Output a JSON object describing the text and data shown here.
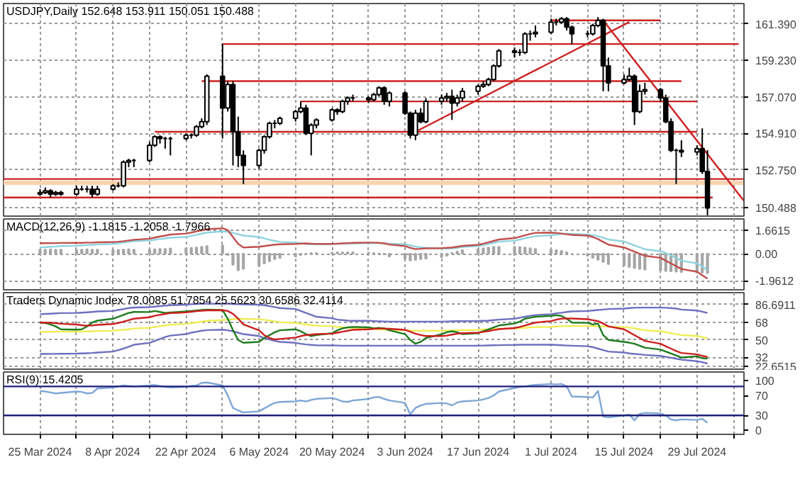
{
  "chart_data": [
    {
      "type": "candlestick",
      "title": "USDJPY,Daily 152.648 153.911 150.051 150.488",
      "x": [
        "2024-03-25",
        "2024-03-26",
        "2024-03-27",
        "2024-03-28",
        "2024-03-29",
        "2024-04-01",
        "2024-04-02",
        "2024-04-03",
        "2024-04-04",
        "2024-04-05",
        "2024-04-08",
        "2024-04-09",
        "2024-04-10",
        "2024-04-11",
        "2024-04-12",
        "2024-04-15",
        "2024-04-16",
        "2024-04-17",
        "2024-04-18",
        "2024-04-19",
        "2024-04-22",
        "2024-04-23",
        "2024-04-24",
        "2024-04-25",
        "2024-04-26",
        "2024-04-29",
        "2024-04-30",
        "2024-05-01",
        "2024-05-02",
        "2024-05-03",
        "2024-05-06",
        "2024-05-07",
        "2024-05-08",
        "2024-05-09",
        "2024-05-10",
        "2024-05-13",
        "2024-05-14",
        "2024-05-15",
        "2024-05-16",
        "2024-05-17",
        "2024-05-20",
        "2024-05-21",
        "2024-05-22",
        "2024-05-23",
        "2024-05-24",
        "2024-05-27",
        "2024-05-28",
        "2024-05-29",
        "2024-05-30",
        "2024-05-31",
        "2024-06-03",
        "2024-06-04",
        "2024-06-05",
        "2024-06-06",
        "2024-06-07",
        "2024-06-10",
        "2024-06-11",
        "2024-06-12",
        "2024-06-13",
        "2024-06-14",
        "2024-06-17",
        "2024-06-18",
        "2024-06-19",
        "2024-06-20",
        "2024-06-21",
        "2024-06-24",
        "2024-06-25",
        "2024-06-26",
        "2024-06-27",
        "2024-06-28",
        "2024-07-01",
        "2024-07-02",
        "2024-07-03",
        "2024-07-04",
        "2024-07-05",
        "2024-07-08",
        "2024-07-09",
        "2024-07-10",
        "2024-07-11",
        "2024-07-12",
        "2024-07-15",
        "2024-07-16",
        "2024-07-17",
        "2024-07-18",
        "2024-07-19",
        "2024-07-22",
        "2024-07-23",
        "2024-07-24",
        "2024-07-25",
        "2024-07-26",
        "2024-07-29",
        "2024-07-30",
        "2024-07-31"
      ],
      "ohlc": [
        [
          151.3,
          151.6,
          151.2,
          151.4
        ],
        [
          151.4,
          151.7,
          151.3,
          151.5
        ],
        [
          151.5,
          151.6,
          151.1,
          151.3
        ],
        [
          151.3,
          151.5,
          151.2,
          151.4
        ],
        [
          151.4,
          151.5,
          151.2,
          151.3
        ],
        [
          151.3,
          151.8,
          151.2,
          151.6
        ],
        [
          151.6,
          151.8,
          151.5,
          151.6
        ],
        [
          151.6,
          151.8,
          151.4,
          151.6
        ],
        [
          151.6,
          151.8,
          151.1,
          151.3
        ],
        [
          151.3,
          151.8,
          151.2,
          151.6
        ],
        [
          151.6,
          151.9,
          151.5,
          151.8
        ],
        [
          151.8,
          152.0,
          151.7,
          151.8
        ],
        [
          151.8,
          153.3,
          151.7,
          153.2
        ],
        [
          153.2,
          153.4,
          152.9,
          153.3
        ],
        [
          153.3,
          153.4,
          152.9,
          153.3
        ],
        [
          153.3,
          154.4,
          153.2,
          154.2
        ],
        [
          154.2,
          154.8,
          154.1,
          154.7
        ],
        [
          154.7,
          154.8,
          154.3,
          154.6
        ],
        [
          154.6,
          154.7,
          154.0,
          154.6
        ],
        [
          154.6,
          154.7,
          153.6,
          154.6
        ],
        [
          154.6,
          154.9,
          154.5,
          154.8
        ],
        [
          154.8,
          154.9,
          154.6,
          154.8
        ],
        [
          154.8,
          155.4,
          154.7,
          155.3
        ],
        [
          155.3,
          155.8,
          155.2,
          155.6
        ],
        [
          155.6,
          158.4,
          155.4,
          158.3
        ],
        [
          158.3,
          160.2,
          154.6,
          156.4
        ],
        [
          156.4,
          158.0,
          156.2,
          157.8
        ],
        [
          157.8,
          158.0,
          153.0,
          155.0
        ],
        [
          155.0,
          155.9,
          152.9,
          153.6
        ],
        [
          153.6,
          153.9,
          151.9,
          153.0
        ],
        [
          153.0,
          154.0,
          152.8,
          153.9
        ],
        [
          153.9,
          154.8,
          153.7,
          154.7
        ],
        [
          154.7,
          155.6,
          154.6,
          155.5
        ],
        [
          155.5,
          155.7,
          155.2,
          155.5
        ],
        [
          155.5,
          155.9,
          155.4,
          155.8
        ],
        [
          155.8,
          156.3,
          155.6,
          156.2
        ],
        [
          156.2,
          156.8,
          156.1,
          156.4
        ],
        [
          156.4,
          156.6,
          154.8,
          154.9
        ],
        [
          154.9,
          155.5,
          153.6,
          155.4
        ],
        [
          155.4,
          155.8,
          155.2,
          155.7
        ],
        [
          155.7,
          156.4,
          155.6,
          156.3
        ],
        [
          156.3,
          156.4,
          156.0,
          156.2
        ],
        [
          156.2,
          156.9,
          156.1,
          156.8
        ],
        [
          156.8,
          157.1,
          156.6,
          157.0
        ],
        [
          157.0,
          157.2,
          156.8,
          157.0
        ],
        [
          157.0,
          157.1,
          156.7,
          156.9
        ],
        [
          156.9,
          157.3,
          156.8,
          157.2
        ],
        [
          157.2,
          157.7,
          157.1,
          157.6
        ],
        [
          157.6,
          157.7,
          156.6,
          156.8
        ],
        [
          156.8,
          157.4,
          156.5,
          157.3
        ],
        [
          157.3,
          157.4,
          156.0,
          156.1
        ],
        [
          156.1,
          156.2,
          154.6,
          154.8
        ],
        [
          154.8,
          156.3,
          154.5,
          156.1
        ],
        [
          156.1,
          156.4,
          155.5,
          155.6
        ],
        [
          155.6,
          157.0,
          155.5,
          156.8
        ],
        [
          156.8,
          157.2,
          156.6,
          157.0
        ],
        [
          157.0,
          157.3,
          156.8,
          157.1
        ],
        [
          157.1,
          157.5,
          155.7,
          156.7
        ],
        [
          156.7,
          157.2,
          156.5,
          157.0
        ],
        [
          157.0,
          157.6,
          156.8,
          157.4
        ],
        [
          157.4,
          157.8,
          157.2,
          157.7
        ],
        [
          157.7,
          158.0,
          157.6,
          157.8
        ],
        [
          157.8,
          158.2,
          157.7,
          158.1
        ],
        [
          158.1,
          159.0,
          158.0,
          158.9
        ],
        [
          158.9,
          159.9,
          158.8,
          159.8
        ],
        [
          159.8,
          160.0,
          159.4,
          159.7
        ],
        [
          159.7,
          159.9,
          159.5,
          159.7
        ],
        [
          159.7,
          160.9,
          159.6,
          160.8
        ],
        [
          160.8,
          161.0,
          160.4,
          160.8
        ],
        [
          160.8,
          161.3,
          160.6,
          160.9
        ],
        [
          160.9,
          161.7,
          160.8,
          161.5
        ],
        [
          161.5,
          161.7,
          161.3,
          161.5
        ],
        [
          161.5,
          161.8,
          161.4,
          161.7
        ],
        [
          161.7,
          161.8,
          161.0,
          161.2
        ],
        [
          161.2,
          161.3,
          160.2,
          160.8
        ],
        [
          160.8,
          161.0,
          160.6,
          160.8
        ],
        [
          160.8,
          161.4,
          160.7,
          161.3
        ],
        [
          161.3,
          161.8,
          161.2,
          161.6
        ],
        [
          161.6,
          161.7,
          157.4,
          158.9
        ],
        [
          158.9,
          159.4,
          157.4,
          157.9
        ],
        [
          157.9,
          158.4,
          157.8,
          158.1
        ],
        [
          158.1,
          158.8,
          158.0,
          158.3
        ],
        [
          158.3,
          158.4,
          155.4,
          156.2
        ],
        [
          156.2,
          157.8,
          156.1,
          157.4
        ],
        [
          157.4,
          157.9,
          157.2,
          157.5
        ],
        [
          157.5,
          157.6,
          156.8,
          157.0
        ],
        [
          157.0,
          157.2,
          155.5,
          155.6
        ],
        [
          155.6,
          155.8,
          153.8,
          153.9
        ],
        [
          153.9,
          154.0,
          151.9,
          153.9
        ],
        [
          153.9,
          154.5,
          153.5,
          153.8
        ],
        [
          153.8,
          154.2,
          153.6,
          154.0
        ],
        [
          154.0,
          155.2,
          152.5,
          152.648
        ],
        [
          152.648,
          153.911,
          150.051,
          150.488
        ]
      ],
      "series": [
        {
          "type": "line",
          "color": "#cc2222",
          "x": [
            "2024-04-29",
            "2024-08-06"
          ],
          "values": [
            160.2,
            160.2
          ]
        },
        {
          "type": "line",
          "color": "#cc2222",
          "x": [
            "2024-04-25",
            "2024-07-26"
          ],
          "values": [
            158.0,
            158.0
          ]
        },
        {
          "type": "line",
          "color": "#cc2222",
          "x": [
            "2024-05-14",
            "2024-07-29"
          ],
          "values": [
            156.8,
            156.8
          ]
        },
        {
          "type": "line",
          "color": "#cc2222",
          "x": [
            "2024-04-16",
            "2024-07-29"
          ],
          "values": [
            155.0,
            155.0
          ]
        },
        {
          "type": "line",
          "color": "#cc2222",
          "x": [
            "2024-03-18",
            "2024-08-07"
          ],
          "values": [
            152.2,
            152.2
          ]
        },
        {
          "type": "line",
          "color": "#cc2222",
          "x": [
            "2024-03-18",
            "2024-08-01"
          ],
          "values": [
            151.1,
            151.1
          ]
        },
        {
          "type": "line",
          "color": "#cc2222",
          "x": [
            "2024-07-01",
            "2024-07-22"
          ],
          "values": [
            161.6,
            161.6
          ]
        },
        {
          "type": "line",
          "color": "#cc2222",
          "x": [
            "2024-06-05",
            "2024-07-16"
          ],
          "values": [
            155.0,
            161.5
          ]
        },
        {
          "type": "line",
          "color": "#cc2222",
          "x": [
            "2024-07-11",
            "2024-08-07"
          ],
          "values": [
            161.6,
            150.9
          ]
        }
      ],
      "bands": [
        {
          "axis": "y",
          "from": 151.85,
          "to": 152.1,
          "color": "#fad3b0"
        }
      ],
      "xlim": [
        "2024-03-18",
        "2024-08-07"
      ],
      "xticks": [
        "2024-03-25",
        "2024-04-01",
        "2024-04-08",
        "2024-04-15",
        "2024-04-22",
        "2024-04-29",
        "2024-05-06",
        "2024-05-13",
        "2024-05-20",
        "2024-05-27",
        "2024-06-03",
        "2024-06-10",
        "2024-06-17",
        "2024-06-24",
        "2024-07-01",
        "2024-07-08",
        "2024-07-15",
        "2024-07-22",
        "2024-07-29",
        "2024-08-05"
      ],
      "ylim": [
        150.0,
        162.6
      ],
      "yticks": [
        {
          "value": 150.488,
          "label": "150.488"
        },
        {
          "value": 152.75,
          "label": "152.750"
        },
        {
          "value": 154.91,
          "label": "154.910"
        },
        {
          "value": 157.07,
          "label": "157.070"
        },
        {
          "value": 159.23,
          "label": "159.230"
        },
        {
          "value": 161.39,
          "label": "161.390"
        }
      ],
      "grid": true,
      "tick_labels": "y"
    },
    {
      "type": "bar",
      "title": "MACD(12,26,9) -1.1815 -1.2058 -1.7966",
      "x": [
        "2024-03-25",
        "2024-03-26",
        "2024-03-27",
        "2024-03-28",
        "2024-03-29",
        "2024-04-01",
        "2024-04-02",
        "2024-04-03",
        "2024-04-04",
        "2024-04-05",
        "2024-04-08",
        "2024-04-09",
        "2024-04-10",
        "2024-04-11",
        "2024-04-12",
        "2024-04-15",
        "2024-04-16",
        "2024-04-17",
        "2024-04-18",
        "2024-04-19",
        "2024-04-22",
        "2024-04-23",
        "2024-04-24",
        "2024-04-25",
        "2024-04-26",
        "2024-04-29",
        "2024-04-30",
        "2024-05-01",
        "2024-05-02",
        "2024-05-03",
        "2024-05-06",
        "2024-05-07",
        "2024-05-08",
        "2024-05-09",
        "2024-05-10",
        "2024-05-13",
        "2024-05-14",
        "2024-05-15",
        "2024-05-16",
        "2024-05-17",
        "2024-05-20",
        "2024-05-21",
        "2024-05-22",
        "2024-05-23",
        "2024-05-24",
        "2024-05-27",
        "2024-05-28",
        "2024-05-29",
        "2024-05-30",
        "2024-05-31",
        "2024-06-03",
        "2024-06-04",
        "2024-06-05",
        "2024-06-06",
        "2024-06-07",
        "2024-06-10",
        "2024-06-11",
        "2024-06-12",
        "2024-06-13",
        "2024-06-14",
        "2024-06-17",
        "2024-06-18",
        "2024-06-19",
        "2024-06-20",
        "2024-06-21",
        "2024-06-24",
        "2024-06-25",
        "2024-06-26",
        "2024-06-27",
        "2024-06-28",
        "2024-07-01",
        "2024-07-02",
        "2024-07-03",
        "2024-07-04",
        "2024-07-05",
        "2024-07-08",
        "2024-07-09",
        "2024-07-10",
        "2024-07-11",
        "2024-07-12",
        "2024-07-15",
        "2024-07-16",
        "2024-07-17",
        "2024-07-18",
        "2024-07-19",
        "2024-07-22",
        "2024-07-23",
        "2024-07-24",
        "2024-07-25",
        "2024-07-26",
        "2024-07-29",
        "2024-07-30",
        "2024-07-31"
      ],
      "series": [
        {
          "type": "bar",
          "color": "#a6a6a6",
          "values": [
            0.3,
            0.3,
            0.32,
            0.3,
            0.3,
            0.28,
            0.3,
            0.32,
            0.3,
            0.3,
            0.28,
            0.28,
            0.3,
            0.32,
            0.3,
            0.3,
            0.32,
            0.35,
            0.35,
            0.38,
            0.4,
            0.42,
            0.45,
            0.5,
            0.55,
            0.6,
            -0.1,
            -0.8,
            -1.2,
            -1.1,
            -0.9,
            -0.7,
            -0.55,
            -0.4,
            -0.3,
            -0.2,
            -0.1,
            -0.05,
            0.05,
            0.05,
            0.08,
            0.1,
            0.1,
            0.1,
            0.1,
            0.08,
            0.05,
            0.02,
            -0.05,
            -0.2,
            -0.35,
            -0.5,
            -0.45,
            -0.4,
            -0.35,
            -0.25,
            -0.15,
            0.05,
            0.15,
            0.25,
            0.35,
            0.4,
            0.45,
            0.5,
            0.5,
            0.5,
            0.48,
            0.45,
            0.4,
            0.35,
            0.3,
            0.25,
            0.2,
            0.1,
            0,
            -0.15,
            -0.3,
            -0.45,
            -0.6,
            -0.75,
            -0.85,
            -0.95,
            -1.05,
            -1.1,
            -1.15,
            -1.2,
            -1.25,
            -1.28,
            -1.3,
            -1.33,
            -1.36,
            -1.38,
            -1.4
          ]
        },
        {
          "type": "line",
          "color": "#8fd3e0",
          "values": [
            0.45,
            0.47,
            0.5,
            0.52,
            0.55,
            0.57,
            0.6,
            0.62,
            0.64,
            0.66,
            0.7,
            0.75,
            0.8,
            0.85,
            0.9,
            0.95,
            1.0,
            1.05,
            1.1,
            1.15,
            1.2,
            1.28,
            1.36,
            1.44,
            1.52,
            1.6,
            1.58,
            1.5,
            1.4,
            1.3,
            1.2,
            1.1,
            1.0,
            0.92,
            0.85,
            0.8,
            0.75,
            0.7,
            0.68,
            0.68,
            0.7,
            0.7,
            0.72,
            0.73,
            0.74,
            0.75,
            0.76,
            0.76,
            0.75,
            0.72,
            0.68,
            0.6,
            0.52,
            0.46,
            0.42,
            0.39,
            0.37,
            0.38,
            0.42,
            0.48,
            0.55,
            0.62,
            0.7,
            0.78,
            0.86,
            0.94,
            1.02,
            1.1,
            1.18,
            1.26,
            1.33,
            1.38,
            1.43,
            1.44,
            1.42,
            1.38,
            1.33,
            1.26,
            1.15,
            1.02,
            0.88,
            0.74,
            0.6,
            0.46,
            0.32,
            0.18,
            0.04,
            -0.12,
            -0.3,
            -0.5,
            -0.7,
            -0.92,
            -1.2
          ]
        },
        {
          "type": "line",
          "color": "#c0504d",
          "values": [
            0.75,
            0.75,
            0.76,
            0.76,
            0.77,
            0.78,
            0.78,
            0.8,
            0.8,
            0.82,
            0.84,
            0.86,
            0.9,
            0.95,
            1.0,
            1.08,
            1.16,
            1.24,
            1.3,
            1.38,
            1.45,
            1.52,
            1.6,
            1.68,
            1.76,
            1.83,
            1.7,
            1.2,
            0.7,
            0.45,
            0.5,
            0.55,
            0.6,
            0.65,
            0.68,
            0.7,
            0.72,
            0.74,
            0.72,
            0.7,
            0.7,
            0.72,
            0.74,
            0.76,
            0.78,
            0.8,
            0.8,
            0.78,
            0.74,
            0.66,
            0.55,
            0.42,
            0.33,
            0.35,
            0.38,
            0.4,
            0.42,
            0.45,
            0.5,
            0.56,
            0.64,
            0.72,
            0.82,
            0.92,
            1.02,
            1.12,
            1.22,
            1.32,
            1.42,
            1.5,
            1.52,
            1.5,
            1.45,
            1.4,
            1.35,
            1.3,
            1.2,
            1.05,
            0.85,
            0.65,
            0.45,
            0.3,
            0.15,
            0,
            -0.15,
            -0.3,
            -0.5,
            -0.7,
            -0.9,
            -1.1,
            -1.3,
            -1.55,
            -1.8
          ]
        }
      ],
      "xlim": [
        "2024-03-18",
        "2024-08-07"
      ],
      "xticks": [
        "2024-03-25",
        "2024-04-01",
        "2024-04-08",
        "2024-04-15",
        "2024-04-22",
        "2024-04-29",
        "2024-05-06",
        "2024-05-13",
        "2024-05-20",
        "2024-05-27",
        "2024-06-03",
        "2024-06-10",
        "2024-06-17",
        "2024-06-24",
        "2024-07-01",
        "2024-07-08",
        "2024-07-15",
        "2024-07-22",
        "2024-07-29",
        "2024-08-05"
      ],
      "ylim": [
        -2.6,
        2.5
      ],
      "yticks": [
        1.6615,
        {
          "value": 0,
          "label": "0.00"
        },
        -1.9612
      ],
      "grid": true,
      "tick_labels": "y"
    },
    {
      "type": "line",
      "title": "Traders Dynamic Index 78.0085 51.7854 25.5623 30.6586 32.4114",
      "x": [
        "2024-03-25",
        "2024-03-26",
        "2024-03-27",
        "2024-03-28",
        "2024-03-29",
        "2024-04-01",
        "2024-04-02",
        "2024-04-03",
        "2024-04-04",
        "2024-04-05",
        "2024-04-08",
        "2024-04-09",
        "2024-04-10",
        "2024-04-11",
        "2024-04-12",
        "2024-04-15",
        "2024-04-16",
        "2024-04-17",
        "2024-04-18",
        "2024-04-19",
        "2024-04-22",
        "2024-04-23",
        "2024-04-24",
        "2024-04-25",
        "2024-04-26",
        "2024-04-29",
        "2024-04-30",
        "2024-05-01",
        "2024-05-02",
        "2024-05-03",
        "2024-05-06",
        "2024-05-07",
        "2024-05-08",
        "2024-05-09",
        "2024-05-10",
        "2024-05-13",
        "2024-05-14",
        "2024-05-15",
        "2024-05-16",
        "2024-05-17",
        "2024-05-20",
        "2024-05-21",
        "2024-05-22",
        "2024-05-23",
        "2024-05-24",
        "2024-05-27",
        "2024-05-28",
        "2024-05-29",
        "2024-05-30",
        "2024-05-31",
        "2024-06-03",
        "2024-06-04",
        "2024-06-05",
        "2024-06-06",
        "2024-06-07",
        "2024-06-10",
        "2024-06-11",
        "2024-06-12",
        "2024-06-13",
        "2024-06-14",
        "2024-06-17",
        "2024-06-18",
        "2024-06-19",
        "2024-06-20",
        "2024-06-21",
        "2024-06-24",
        "2024-06-25",
        "2024-06-26",
        "2024-06-27",
        "2024-06-28",
        "2024-07-01",
        "2024-07-02",
        "2024-07-03",
        "2024-07-04",
        "2024-07-05",
        "2024-07-08",
        "2024-07-09",
        "2024-07-10",
        "2024-07-11",
        "2024-07-12",
        "2024-07-15",
        "2024-07-16",
        "2024-07-17",
        "2024-07-18",
        "2024-07-19",
        "2024-07-22",
        "2024-07-23",
        "2024-07-24",
        "2024-07-25",
        "2024-07-26",
        "2024-07-29",
        "2024-07-30",
        "2024-07-31"
      ],
      "series": [
        {
          "color": "#6f6fc0",
          "values": [
            76.7,
            77,
            77.2,
            77.5,
            77.8,
            78,
            78.3,
            78.6,
            79,
            79.5,
            80,
            81,
            82,
            83,
            83.6,
            84,
            84.5,
            85,
            85.5,
            86,
            86.5,
            87,
            87.3,
            87.5,
            87.5,
            87.5,
            87.5,
            87.3,
            87,
            86.8,
            86.5,
            86,
            85,
            84,
            83,
            82,
            80,
            78,
            76,
            74,
            72.5,
            71,
            70.5,
            70,
            69.8,
            69.8,
            69.5,
            69.3,
            69.2,
            69,
            69,
            69,
            69,
            69,
            69,
            69,
            69.2,
            69.3,
            69.5,
            69.5,
            69.6,
            69.8,
            70,
            70.5,
            71,
            72,
            73,
            74,
            75,
            75.8,
            76.7,
            77.5,
            78.2,
            79,
            79.5,
            80,
            80.5,
            81,
            81.5,
            82,
            82.5,
            83,
            83.3,
            83.5,
            83.5,
            83.5,
            83.3,
            83,
            82.5,
            81.5,
            80.5,
            79.3,
            78.0
          ]
        },
        {
          "color": "#eeee55",
          "values": [
            58.4,
            58.4,
            58.4,
            58.5,
            58.5,
            58.6,
            58.7,
            58.8,
            59,
            59.3,
            59.6,
            60,
            60.5,
            61,
            61.8,
            62.6,
            63.4,
            64.2,
            65,
            65.8,
            66.6,
            67.4,
            68.2,
            69,
            69.8,
            70.5,
            71,
            71.5,
            72,
            71.8,
            71.4,
            70.8,
            70,
            69.2,
            68.4,
            67.6,
            66.8,
            66,
            65.4,
            64.8,
            64.2,
            63.6,
            63,
            62.6,
            62.2,
            61.8,
            61.4,
            61,
            60.6,
            60.2,
            60,
            59.8,
            59.6,
            59.5,
            59.5,
            59.5,
            59.6,
            59.8,
            60,
            60.2,
            60.5,
            60.8,
            61,
            61.3,
            61.6,
            62,
            62.3,
            62.6,
            63,
            63.3,
            63.6,
            63.9,
            64.2,
            64.3,
            64.4,
            64.4,
            64.3,
            64.2,
            64,
            63.7,
            63.3,
            62.8,
            62,
            61,
            60,
            59,
            58,
            57,
            56,
            55,
            54,
            53,
            51.8
          ]
        },
        {
          "color": "#6f6fc0",
          "values": [
            35.5,
            35.5,
            35.6,
            35.6,
            35.7,
            35.8,
            36,
            36.2,
            36.5,
            37,
            38,
            39.5,
            41,
            43,
            45,
            47,
            49,
            51,
            53,
            54.5,
            56,
            57.5,
            58.5,
            59.5,
            60.2,
            60.6,
            60,
            59,
            57.5,
            56,
            54,
            52,
            50.5,
            49,
            48,
            47,
            46,
            45.3,
            44.8,
            44.5,
            44.3,
            44.2,
            44,
            44,
            44,
            44,
            44,
            44,
            44,
            44,
            44,
            44,
            44,
            44,
            44,
            44,
            44,
            44,
            44,
            44,
            44,
            44.2,
            44.3,
            44.5,
            44.6,
            44.8,
            45,
            45,
            45,
            45,
            45,
            44.8,
            44.5,
            44.2,
            44,
            43.5,
            42.5,
            41,
            39.5,
            38,
            37,
            36,
            35.5,
            35,
            34.5,
            33.5,
            32.5,
            31.5,
            30.5,
            29.5,
            28,
            27,
            25.6
          ]
        },
        {
          "color": "#1e7b1e",
          "values": [
            68,
            67.5,
            66,
            64,
            61,
            60.6,
            61,
            64,
            68,
            70,
            72,
            74,
            76,
            78,
            79,
            78.9,
            80,
            79,
            78,
            78.5,
            79.5,
            80,
            80.5,
            81,
            81.5,
            81,
            72,
            60,
            50,
            47,
            48,
            52,
            55,
            58,
            60,
            61,
            59,
            56,
            54,
            55,
            57,
            60,
            62,
            63,
            63.5,
            63,
            62,
            62.5,
            62,
            60,
            56,
            50,
            46,
            48,
            52,
            56,
            58,
            59,
            58,
            56,
            57,
            59,
            61,
            63,
            65,
            67,
            69,
            72,
            73,
            74,
            75,
            75.6,
            75,
            72,
            68,
            67.7,
            66,
            67,
            55,
            50,
            48,
            47.2,
            46,
            44,
            42,
            40,
            38,
            36,
            34,
            31.8,
            33,
            31,
            30.7
          ]
        },
        {
          "color": "#cc1f1f",
          "values": [
            68,
            68,
            67.8,
            67.4,
            66.8,
            66,
            65.2,
            64.8,
            65,
            65.6,
            66.5,
            67.5,
            69,
            70.5,
            72,
            73.5,
            75,
            76,
            77,
            77.8,
            78.5,
            79.2,
            79.8,
            80.3,
            80.6,
            80.8,
            80,
            77,
            72,
            66,
            60,
            55,
            52,
            50.5,
            51,
            52.5,
            54,
            55,
            55.5,
            56,
            56.5,
            57.5,
            58.5,
            59.5,
            60.5,
            61,
            61.5,
            61.8,
            61.8,
            61.5,
            60.5,
            58.5,
            56.5,
            55,
            54,
            54,
            54.5,
            55.5,
            56.5,
            57,
            57.5,
            58.3,
            59.2,
            60.2,
            61.2,
            62.3,
            63.5,
            65,
            66.5,
            68,
            69.5,
            71,
            72,
            72.3,
            72.2,
            71.5,
            70.5,
            69.5,
            67,
            64,
            61,
            58,
            55,
            52,
            49,
            46,
            43.5,
            41,
            38.5,
            36.5,
            35,
            33.5,
            32.4
          ]
        }
      ],
      "xlim": [
        "2024-03-18",
        "2024-08-07"
      ],
      "xticks": [
        "2024-03-25",
        "2024-04-01",
        "2024-04-08",
        "2024-04-15",
        "2024-04-22",
        "2024-04-29",
        "2024-05-06",
        "2024-05-13",
        "2024-05-20",
        "2024-05-27",
        "2024-06-03",
        "2024-06-10",
        "2024-06-17",
        "2024-06-24",
        "2024-07-01",
        "2024-07-08",
        "2024-07-15",
        "2024-07-22",
        "2024-07-29",
        "2024-08-05"
      ],
      "ylim": [
        19.7,
        99
      ],
      "yticks": [
        86.6911,
        68,
        50,
        32,
        22.6515
      ],
      "grid": true,
      "tick_labels": "y"
    },
    {
      "type": "line",
      "title": "RSI(9) 15.4205",
      "x": [
        "2024-03-25",
        "2024-03-26",
        "2024-03-27",
        "2024-03-28",
        "2024-03-29",
        "2024-04-01",
        "2024-04-02",
        "2024-04-03",
        "2024-04-04",
        "2024-04-05",
        "2024-04-08",
        "2024-04-09",
        "2024-04-10",
        "2024-04-11",
        "2024-04-12",
        "2024-04-15",
        "2024-04-16",
        "2024-04-17",
        "2024-04-18",
        "2024-04-19",
        "2024-04-22",
        "2024-04-23",
        "2024-04-24",
        "2024-04-25",
        "2024-04-26",
        "2024-04-29",
        "2024-04-30",
        "2024-05-01",
        "2024-05-02",
        "2024-05-03",
        "2024-05-06",
        "2024-05-07",
        "2024-05-08",
        "2024-05-09",
        "2024-05-10",
        "2024-05-13",
        "2024-05-14",
        "2024-05-15",
        "2024-05-16",
        "2024-05-17",
        "2024-05-20",
        "2024-05-21",
        "2024-05-22",
        "2024-05-23",
        "2024-05-24",
        "2024-05-27",
        "2024-05-28",
        "2024-05-29",
        "2024-05-30",
        "2024-05-31",
        "2024-06-03",
        "2024-06-04",
        "2024-06-05",
        "2024-06-06",
        "2024-06-07",
        "2024-06-10",
        "2024-06-11",
        "2024-06-12",
        "2024-06-13",
        "2024-06-14",
        "2024-06-17",
        "2024-06-18",
        "2024-06-19",
        "2024-06-20",
        "2024-06-21",
        "2024-06-24",
        "2024-06-25",
        "2024-06-26",
        "2024-06-27",
        "2024-06-28",
        "2024-07-01",
        "2024-07-02",
        "2024-07-03",
        "2024-07-04",
        "2024-07-05",
        "2024-07-08",
        "2024-07-09",
        "2024-07-10",
        "2024-07-11",
        "2024-07-12",
        "2024-07-15",
        "2024-07-16",
        "2024-07-17",
        "2024-07-18",
        "2024-07-19",
        "2024-07-22",
        "2024-07-23",
        "2024-07-24",
        "2024-07-25",
        "2024-07-26",
        "2024-07-29",
        "2024-07-30",
        "2024-07-31"
      ],
      "series": [
        {
          "color": "#7fa7d6",
          "values": [
            79,
            78,
            76,
            74,
            75,
            78,
            77,
            74,
            75,
            84,
            86,
            88,
            90,
            89,
            88,
            90,
            91,
            89,
            87,
            86,
            87,
            89,
            90,
            95,
            96,
            90,
            70,
            45,
            40,
            36,
            38,
            44,
            50,
            55,
            57,
            58,
            60,
            58,
            61,
            63,
            65,
            62,
            58,
            57,
            60,
            63,
            66,
            67,
            63,
            60,
            55,
            32,
            45,
            50,
            53,
            55,
            54,
            50,
            56,
            58,
            60,
            62,
            65,
            70,
            78,
            85,
            87,
            88,
            90,
            91,
            93,
            92,
            93,
            88,
            68,
            67,
            66,
            79,
            28,
            26,
            30,
            32,
            20,
            33,
            35,
            34,
            30,
            22,
            20,
            22,
            21,
            23,
            15.42
          ]
        }
      ],
      "ref_lines": [
        {
          "axis": "y",
          "value": 88,
          "color": "#1f1f7a"
        },
        {
          "axis": "y",
          "value": 30,
          "color": "#1f1f7a"
        }
      ],
      "xlim": [
        "2024-03-18",
        "2024-08-07"
      ],
      "xticks": [
        {
          "value": "2024-03-25",
          "label": "25 Mar 2024"
        },
        {
          "value": "2024-04-01",
          "label": null
        },
        {
          "value": "2024-04-08",
          "label": "8 Apr 2024"
        },
        {
          "value": "2024-04-15",
          "label": null
        },
        {
          "value": "2024-04-22",
          "label": "22 Apr 2024"
        },
        {
          "value": "2024-04-29",
          "label": null
        },
        {
          "value": "2024-05-06",
          "label": "6 May 2024"
        },
        {
          "value": "2024-05-13",
          "label": null
        },
        {
          "value": "2024-05-20",
          "label": "20 May 2024"
        },
        {
          "value": "2024-05-27",
          "label": null
        },
        {
          "value": "2024-06-03",
          "label": "3 Jun 2024"
        },
        {
          "value": "2024-06-10",
          "label": null
        },
        {
          "value": "2024-06-17",
          "label": "17 Jun 2024"
        },
        {
          "value": "2024-06-24",
          "label": null
        },
        {
          "value": "2024-07-01",
          "label": "1 Jul 2024"
        },
        {
          "value": "2024-07-08",
          "label": null
        },
        {
          "value": "2024-07-15",
          "label": "15 Jul 2024"
        },
        {
          "value": "2024-07-22",
          "label": null
        },
        {
          "value": "2024-07-29",
          "label": "29 Jul 2024"
        },
        {
          "value": "2024-08-05",
          "label": null
        }
      ],
      "ylim": [
        -8,
        117
      ],
      "yticks": [
        100,
        70,
        30,
        0
      ],
      "grid": "x"
    }
  ]
}
